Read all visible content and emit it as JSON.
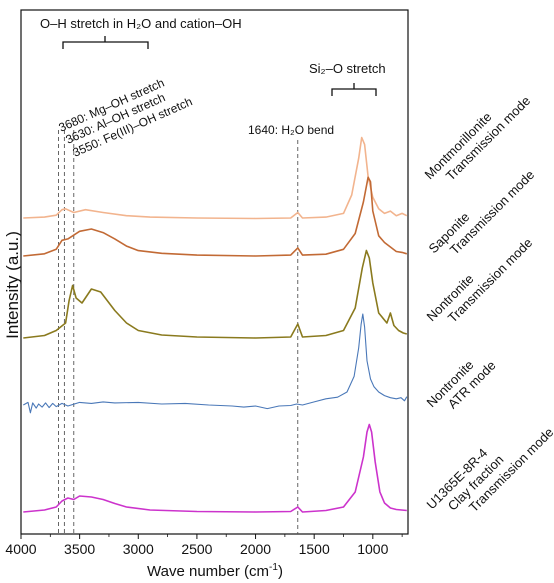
{
  "chart_data": {
    "type": "line",
    "xlabel_main": "Wave number (cm",
    "xlabel_sup": "-1",
    "xlabel_close": ")",
    "ylabel": "Intensity (a.u.)",
    "xlim": [
      4000,
      700
    ],
    "x_ticks": [
      4000,
      3500,
      3000,
      2500,
      2000,
      1500,
      1000
    ],
    "grid": false,
    "annotations": {
      "oh_group": "O–H stretch in H₂O and cation–OH",
      "si_group": "Si₂–O stretch",
      "mg_oh": "3680: Mg–OH stretch",
      "al_oh": "3630: Al–OH stretch",
      "fe_oh": "3550: Fe(III)–OH stretch",
      "h2o_bend": "1640: H₂O bend"
    },
    "marker_lines": [
      3680,
      3630,
      3550,
      1640
    ],
    "series": [
      {
        "name_lines": [
          "Montmorillonite",
          "Transmission mode"
        ],
        "color": "#f2b48e",
        "points": [
          [
            3980,
            0.0
          ],
          [
            3800,
            0.02
          ],
          [
            3700,
            0.06
          ],
          [
            3650,
            0.18
          ],
          [
            3620,
            0.2
          ],
          [
            3550,
            0.12
          ],
          [
            3450,
            0.18
          ],
          [
            3300,
            0.12
          ],
          [
            3100,
            0.05
          ],
          [
            2900,
            0.02
          ],
          [
            2500,
            0.0
          ],
          [
            2000,
            -0.01
          ],
          [
            1700,
            0.0
          ],
          [
            1640,
            0.12
          ],
          [
            1600,
            0.0
          ],
          [
            1400,
            0.02
          ],
          [
            1250,
            0.1
          ],
          [
            1180,
            0.5
          ],
          [
            1120,
            1.3
          ],
          [
            1095,
            1.75
          ],
          [
            1070,
            1.6
          ],
          [
            1040,
            0.9
          ],
          [
            1000,
            0.45
          ],
          [
            950,
            0.2
          ],
          [
            900,
            0.1
          ],
          [
            850,
            0.15
          ],
          [
            800,
            0.05
          ],
          [
            750,
            0.1
          ],
          [
            710,
            0.05
          ]
        ]
      },
      {
        "name_lines": [
          "Saponite",
          "Transmission mode"
        ],
        "color": "#c26a35",
        "points": [
          [
            3980,
            0.0
          ],
          [
            3800,
            0.05
          ],
          [
            3700,
            0.15
          ],
          [
            3650,
            0.35
          ],
          [
            3600,
            0.38
          ],
          [
            3500,
            0.55
          ],
          [
            3400,
            0.6
          ],
          [
            3300,
            0.52
          ],
          [
            3200,
            0.38
          ],
          [
            3100,
            0.22
          ],
          [
            3000,
            0.12
          ],
          [
            2800,
            0.06
          ],
          [
            2500,
            0.02
          ],
          [
            2000,
            0.0
          ],
          [
            1700,
            0.02
          ],
          [
            1640,
            0.18
          ],
          [
            1600,
            0.02
          ],
          [
            1400,
            0.04
          ],
          [
            1250,
            0.15
          ],
          [
            1150,
            0.5
          ],
          [
            1080,
            1.2
          ],
          [
            1040,
            1.75
          ],
          [
            1020,
            1.65
          ],
          [
            1000,
            1.0
          ],
          [
            950,
            0.45
          ],
          [
            900,
            0.3
          ],
          [
            850,
            0.2
          ],
          [
            800,
            0.1
          ],
          [
            750,
            0.08
          ],
          [
            710,
            0.05
          ]
        ]
      },
      {
        "name_lines": [
          "Nontronite",
          "Transmission mode"
        ],
        "color": "#8a7a1e",
        "points": [
          [
            3980,
            0.0
          ],
          [
            3800,
            0.05
          ],
          [
            3700,
            0.15
          ],
          [
            3620,
            0.3
          ],
          [
            3590,
            0.75
          ],
          [
            3560,
            1.05
          ],
          [
            3530,
            0.8
          ],
          [
            3480,
            0.7
          ],
          [
            3400,
            0.98
          ],
          [
            3320,
            0.92
          ],
          [
            3200,
            0.55
          ],
          [
            3100,
            0.3
          ],
          [
            3000,
            0.15
          ],
          [
            2800,
            0.06
          ],
          [
            2500,
            0.02
          ],
          [
            2000,
            0.0
          ],
          [
            1700,
            0.02
          ],
          [
            1640,
            0.28
          ],
          [
            1600,
            0.02
          ],
          [
            1400,
            0.05
          ],
          [
            1250,
            0.15
          ],
          [
            1150,
            0.6
          ],
          [
            1090,
            1.4
          ],
          [
            1055,
            1.75
          ],
          [
            1030,
            1.6
          ],
          [
            1000,
            1.1
          ],
          [
            950,
            0.5
          ],
          [
            880,
            0.3
          ],
          [
            850,
            0.5
          ],
          [
            820,
            0.25
          ],
          [
            780,
            0.15
          ],
          [
            740,
            0.1
          ],
          [
            710,
            0.08
          ]
        ]
      },
      {
        "name_lines": [
          "Nontronite",
          "ATR mode"
        ],
        "color": "#4a78b8",
        "points": [
          [
            3980,
            0.0
          ],
          [
            3940,
            0.05
          ],
          [
            3920,
            -0.15
          ],
          [
            3900,
            0.04
          ],
          [
            3870,
            -0.06
          ],
          [
            3850,
            0.02
          ],
          [
            3820,
            -0.04
          ],
          [
            3790,
            0.04
          ],
          [
            3760,
            -0.05
          ],
          [
            3730,
            0.03
          ],
          [
            3700,
            -0.03
          ],
          [
            3650,
            0.03
          ],
          [
            3600,
            -0.02
          ],
          [
            3500,
            0.05
          ],
          [
            3400,
            0.03
          ],
          [
            3300,
            0.06
          ],
          [
            3200,
            0.04
          ],
          [
            3000,
            0.05
          ],
          [
            2800,
            0.02
          ],
          [
            2600,
            0.03
          ],
          [
            2400,
            0.0
          ],
          [
            2200,
            -0.02
          ],
          [
            2100,
            -0.04
          ],
          [
            2000,
            -0.02
          ],
          [
            1900,
            -0.07
          ],
          [
            1800,
            -0.02
          ],
          [
            1700,
            -0.01
          ],
          [
            1650,
            0.02
          ],
          [
            1600,
            0.0
          ],
          [
            1500,
            0.06
          ],
          [
            1400,
            0.12
          ],
          [
            1300,
            0.15
          ],
          [
            1220,
            0.25
          ],
          [
            1160,
            0.55
          ],
          [
            1120,
            1.1
          ],
          [
            1100,
            1.55
          ],
          [
            1085,
            1.75
          ],
          [
            1070,
            1.5
          ],
          [
            1050,
            0.85
          ],
          [
            1020,
            0.5
          ],
          [
            990,
            0.35
          ],
          [
            950,
            0.25
          ],
          [
            900,
            0.18
          ],
          [
            850,
            0.14
          ],
          [
            800,
            0.12
          ],
          [
            760,
            0.14
          ],
          [
            730,
            0.08
          ],
          [
            710,
            0.16
          ]
        ]
      },
      {
        "name_lines": [
          "U1365E-8R-4",
          "Clay fraction",
          "Transmission mode"
        ],
        "color": "#cc33cc",
        "points": [
          [
            3980,
            0.0
          ],
          [
            3800,
            0.04
          ],
          [
            3700,
            0.1
          ],
          [
            3650,
            0.22
          ],
          [
            3600,
            0.28
          ],
          [
            3550,
            0.25
          ],
          [
            3500,
            0.32
          ],
          [
            3400,
            0.3
          ],
          [
            3300,
            0.25
          ],
          [
            3200,
            0.17
          ],
          [
            3100,
            0.1
          ],
          [
            2900,
            0.04
          ],
          [
            2500,
            0.01
          ],
          [
            2000,
            0.0
          ],
          [
            1700,
            0.01
          ],
          [
            1640,
            0.1
          ],
          [
            1600,
            0.0
          ],
          [
            1400,
            0.03
          ],
          [
            1250,
            0.1
          ],
          [
            1150,
            0.4
          ],
          [
            1080,
            1.1
          ],
          [
            1050,
            1.6
          ],
          [
            1030,
            1.75
          ],
          [
            1010,
            1.6
          ],
          [
            980,
            1.0
          ],
          [
            940,
            0.4
          ],
          [
            900,
            0.18
          ],
          [
            850,
            0.08
          ],
          [
            800,
            0.05
          ],
          [
            710,
            0.03
          ]
        ]
      }
    ]
  }
}
